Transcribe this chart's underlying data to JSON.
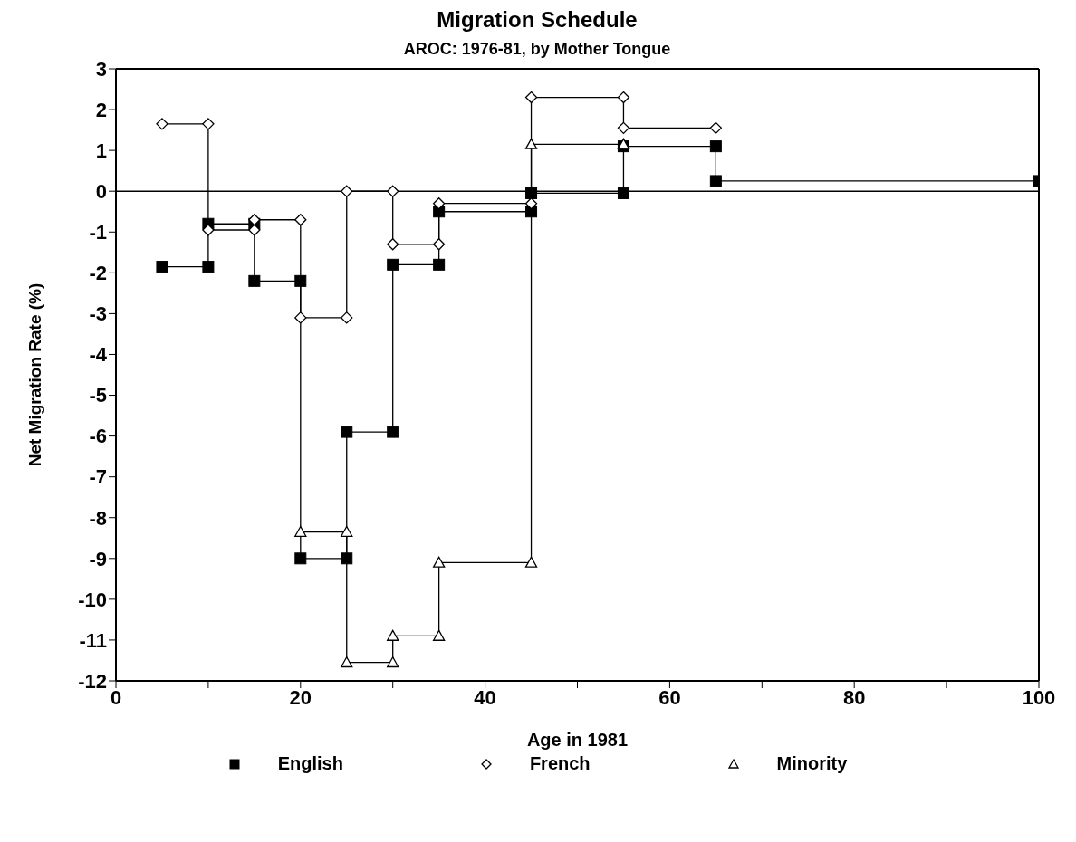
{
  "chart_data": {
    "type": "line",
    "title": "Migration Schedule",
    "subtitle": "AROC: 1976-81, by Mother Tongue",
    "xlabel": "Age in 1981",
    "ylabel": "Net Migration Rate (%)",
    "xlim": [
      0,
      100
    ],
    "xticks": [
      0,
      {
        "value": 10,
        "label": null
      },
      20,
      {
        "value": 30,
        "label": null
      },
      40,
      {
        "value": 50,
        "label": null
      },
      60,
      {
        "value": 70,
        "label": null
      },
      80,
      {
        "value": 90,
        "label": null
      },
      100
    ],
    "ylim": [
      -12,
      3
    ],
    "yticks": [
      -12,
      -11,
      -10,
      -9,
      -8,
      -7,
      -6,
      -5,
      -4,
      -3,
      -2,
      -1,
      0,
      1,
      2,
      3
    ],
    "grid": false,
    "legend": "bottom",
    "line_style": "solid",
    "ref_lines": [
      {
        "axis": "y",
        "value": 0,
        "label": null,
        "color": "#000000"
      }
    ],
    "series": [
      {
        "name": "English",
        "color": "#000000",
        "marker": "square",
        "x": [
          5,
          10,
          10,
          15,
          15,
          20,
          20,
          25,
          25,
          30,
          30,
          35,
          35,
          45,
          45,
          55,
          55,
          65,
          65,
          100
        ],
        "values": [
          -1.85,
          -1.85,
          -0.8,
          -0.8,
          -2.2,
          -2.2,
          -9.0,
          -9.0,
          -5.9,
          -5.9,
          -1.8,
          -1.8,
          -0.5,
          -0.5,
          -0.05,
          -0.05,
          1.1,
          1.1,
          0.25,
          0.25
        ]
      },
      {
        "name": "French",
        "color": "#000000",
        "marker": "diamond",
        "x": [
          5,
          10,
          10,
          15,
          15,
          20,
          20,
          25,
          25,
          30,
          30,
          35,
          35,
          45,
          45,
          55,
          55,
          65
        ],
        "values": [
          1.65,
          1.65,
          -0.95,
          -0.95,
          -0.7,
          -0.7,
          -3.1,
          -3.1,
          0,
          0,
          -1.3,
          -1.3,
          -0.3,
          -0.3,
          2.3,
          2.3,
          1.55,
          1.55
        ]
      },
      {
        "name": "Minority",
        "color": "#000000",
        "marker": "triangle",
        "x": [
          20,
          25,
          25,
          30,
          30,
          35,
          35,
          45,
          45,
          55
        ],
        "values": [
          -8.35,
          -8.35,
          -11.55,
          -11.55,
          -10.9,
          -10.9,
          -9.1,
          -9.1,
          1.15,
          1.15
        ]
      }
    ]
  }
}
